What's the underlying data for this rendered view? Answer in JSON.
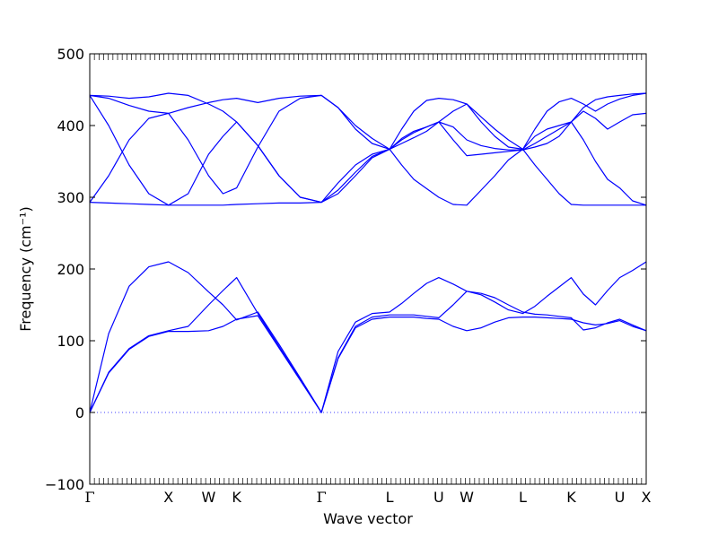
{
  "chart_data": {
    "type": "line",
    "title": "",
    "xlabel": "Wave vector",
    "ylabel": "Frequency (cm⁻¹)",
    "ylim": [
      -100,
      500
    ],
    "yticks": [
      -100,
      0,
      100,
      200,
      300,
      400,
      500
    ],
    "grid": false,
    "legend": "none",
    "line_color": "#0000ff",
    "zero_line_color": "#0000ff",
    "xlim": [
      0,
      7.35
    ],
    "high_symmetry_points": [
      {
        "label": "Γ",
        "x": 0.0
      },
      {
        "label": "X",
        "x": 1.04
      },
      {
        "label": "W",
        "x": 1.57
      },
      {
        "label": "K",
        "x": 1.94
      },
      {
        "label": "Γ",
        "x": 3.06
      },
      {
        "label": "L",
        "x": 3.96
      },
      {
        "label": "U",
        "x": 4.61
      },
      {
        "label": "W",
        "x": 4.98
      },
      {
        "label": "L",
        "x": 5.72
      },
      {
        "label": "K",
        "x": 6.36
      },
      {
        "label": "U",
        "x": 7.0
      },
      {
        "label": "X",
        "x": 7.35
      }
    ],
    "series": [
      {
        "x": [
          0.0,
          0.25,
          0.52,
          0.78,
          1.04,
          1.3,
          1.57,
          1.76,
          1.94,
          2.22,
          2.5,
          2.78,
          3.06,
          3.28,
          3.51,
          3.73,
          3.96,
          4.12,
          4.28,
          4.45,
          4.61,
          4.8,
          4.98,
          5.17,
          5.35,
          5.53,
          5.72,
          5.88,
          6.04,
          6.2,
          6.36,
          6.52,
          6.68,
          6.84,
          7.0,
          7.17,
          7.35
        ],
        "values": [
          0,
          55,
          88,
          106,
          113,
          113,
          114,
          120,
          130,
          135,
          90,
          45,
          0,
          75,
          118,
          130,
          133,
          133,
          133,
          131,
          130,
          120,
          114,
          118,
          126,
          132,
          133,
          133,
          132,
          131,
          130,
          125,
          122,
          124,
          128,
          120,
          114
        ]
      },
      {
        "x": [
          0.0,
          0.25,
          0.52,
          0.78,
          1.04,
          1.3,
          1.57,
          1.76,
          1.94,
          2.22,
          2.5,
          2.78,
          3.06,
          3.28,
          3.51,
          3.73,
          3.96,
          4.12,
          4.28,
          4.45,
          4.61,
          4.8,
          4.98,
          5.17,
          5.35,
          5.53,
          5.72,
          5.88,
          6.04,
          6.2,
          6.36,
          6.52,
          6.68,
          6.84,
          7.0,
          7.17,
          7.35
        ],
        "values": [
          0,
          56,
          89,
          107,
          114,
          120,
          150,
          170,
          188,
          138,
          92,
          46,
          0,
          76,
          120,
          133,
          136,
          136,
          136,
          134,
          132,
          150,
          169,
          164,
          154,
          143,
          138,
          148,
          162,
          175,
          188,
          165,
          150,
          170,
          188,
          198,
          210
        ]
      },
      {
        "x": [
          0.0,
          0.25,
          0.52,
          0.78,
          1.04,
          1.3,
          1.57,
          1.76,
          1.94,
          2.22,
          2.5,
          2.78,
          3.06,
          3.28,
          3.51,
          3.73,
          3.96,
          4.12,
          4.28,
          4.45,
          4.61,
          4.8,
          4.98,
          5.17,
          5.35,
          5.53,
          5.72,
          5.88,
          6.04,
          6.2,
          6.36,
          6.52,
          6.68,
          6.84,
          7.0,
          7.17,
          7.35
        ],
        "values": [
          0,
          110,
          176,
          203,
          210,
          195,
          168,
          150,
          129,
          140,
          95,
          48,
          0,
          85,
          126,
          138,
          140,
          152,
          166,
          180,
          188,
          179,
          169,
          166,
          160,
          150,
          140,
          137,
          136,
          134,
          132,
          115,
          118,
          125,
          130,
          122,
          114
        ]
      },
      {
        "x": [
          0.0,
          0.25,
          0.52,
          0.78,
          1.04,
          1.3,
          1.57,
          1.76,
          1.94,
          2.22,
          2.5,
          2.78,
          3.06,
          3.28,
          3.51,
          3.73,
          3.96,
          4.12,
          4.28,
          4.45,
          4.61,
          4.8,
          4.98,
          5.17,
          5.35,
          5.53,
          5.72,
          5.88,
          6.04,
          6.2,
          6.36,
          6.52,
          6.68,
          6.84,
          7.0,
          7.17,
          7.35
        ],
        "values": [
          293,
          292,
          291,
          290,
          289,
          289,
          289,
          289,
          290,
          291,
          292,
          292,
          293,
          320,
          345,
          360,
          367,
          345,
          325,
          312,
          300,
          290,
          289,
          310,
          330,
          352,
          367,
          345,
          325,
          305,
          290,
          289,
          289,
          289,
          289,
          289,
          289
        ]
      },
      {
        "x": [
          0.0,
          0.25,
          0.52,
          0.78,
          1.04,
          1.3,
          1.57,
          1.76,
          1.94,
          2.22,
          2.5,
          2.78,
          3.06,
          3.28,
          3.51,
          3.73,
          3.96,
          4.12,
          4.28,
          4.45,
          4.61,
          4.8,
          4.98,
          5.17,
          5.35,
          5.53,
          5.72,
          5.88,
          6.04,
          6.2,
          6.36,
          6.52,
          6.68,
          6.84,
          7.0,
          7.17,
          7.35
        ],
        "values": [
          293,
          330,
          380,
          410,
          417,
          380,
          330,
          305,
          313,
          370,
          420,
          438,
          442,
          425,
          400,
          382,
          367,
          382,
          392,
          398,
          405,
          380,
          358,
          360,
          362,
          364,
          366,
          375,
          385,
          395,
          405,
          380,
          350,
          325,
          313,
          295,
          289
        ]
      },
      {
        "x": [
          0.0,
          0.25,
          0.52,
          0.78,
          1.04,
          1.3,
          1.57,
          1.76,
          1.94,
          2.22,
          2.5,
          2.78,
          3.06,
          3.28,
          3.51,
          3.73,
          3.96,
          4.12,
          4.28,
          4.45,
          4.61,
          4.8,
          4.98,
          5.17,
          5.35,
          5.53,
          5.72,
          5.88,
          6.04,
          6.2,
          6.36,
          6.52,
          6.68,
          6.84,
          7.0,
          7.17,
          7.35
        ],
        "values": [
          442,
          400,
          345,
          305,
          289,
          305,
          360,
          385,
          405,
          372,
          330,
          300,
          293,
          305,
          330,
          355,
          367,
          380,
          390,
          398,
          405,
          420,
          430,
          405,
          385,
          370,
          367,
          385,
          395,
          400,
          405,
          420,
          410,
          395,
          405,
          415,
          417
        ]
      },
      {
        "x": [
          0.0,
          0.25,
          0.52,
          0.78,
          1.04,
          1.3,
          1.57,
          1.76,
          1.94,
          2.22,
          2.5,
          2.78,
          3.06,
          3.28,
          3.51,
          3.73,
          3.96,
          4.12,
          4.28,
          4.45,
          4.61,
          4.8,
          4.98,
          5.17,
          5.35,
          5.53,
          5.72,
          5.88,
          6.04,
          6.2,
          6.36,
          6.52,
          6.68,
          6.84,
          7.0,
          7.17,
          7.35
        ],
        "values": [
          442,
          438,
          428,
          420,
          417,
          425,
          432,
          436,
          438,
          432,
          438,
          441,
          442,
          425,
          395,
          375,
          367,
          395,
          420,
          435,
          438,
          436,
          430,
          412,
          395,
          380,
          367,
          395,
          420,
          433,
          438,
          430,
          420,
          430,
          437,
          442,
          445
        ]
      },
      {
        "x": [
          0.0,
          0.25,
          0.52,
          0.78,
          1.04,
          1.3,
          1.57,
          1.76,
          1.94,
          2.22,
          2.5,
          2.78,
          3.06,
          3.28,
          3.51,
          3.73,
          3.96,
          4.12,
          4.28,
          4.45,
          4.61,
          4.8,
          4.98,
          5.17,
          5.35,
          5.53,
          5.72,
          5.88,
          6.04,
          6.2,
          6.36,
          6.52,
          6.68,
          6.84,
          7.0,
          7.17,
          7.35
        ],
        "values": [
          442,
          441,
          438,
          440,
          445,
          442,
          430,
          420,
          405,
          372,
          330,
          300,
          293,
          310,
          335,
          357,
          367,
          375,
          383,
          392,
          405,
          398,
          380,
          372,
          368,
          366,
          366,
          370,
          375,
          385,
          405,
          425,
          436,
          440,
          442,
          444,
          445
        ]
      }
    ]
  }
}
